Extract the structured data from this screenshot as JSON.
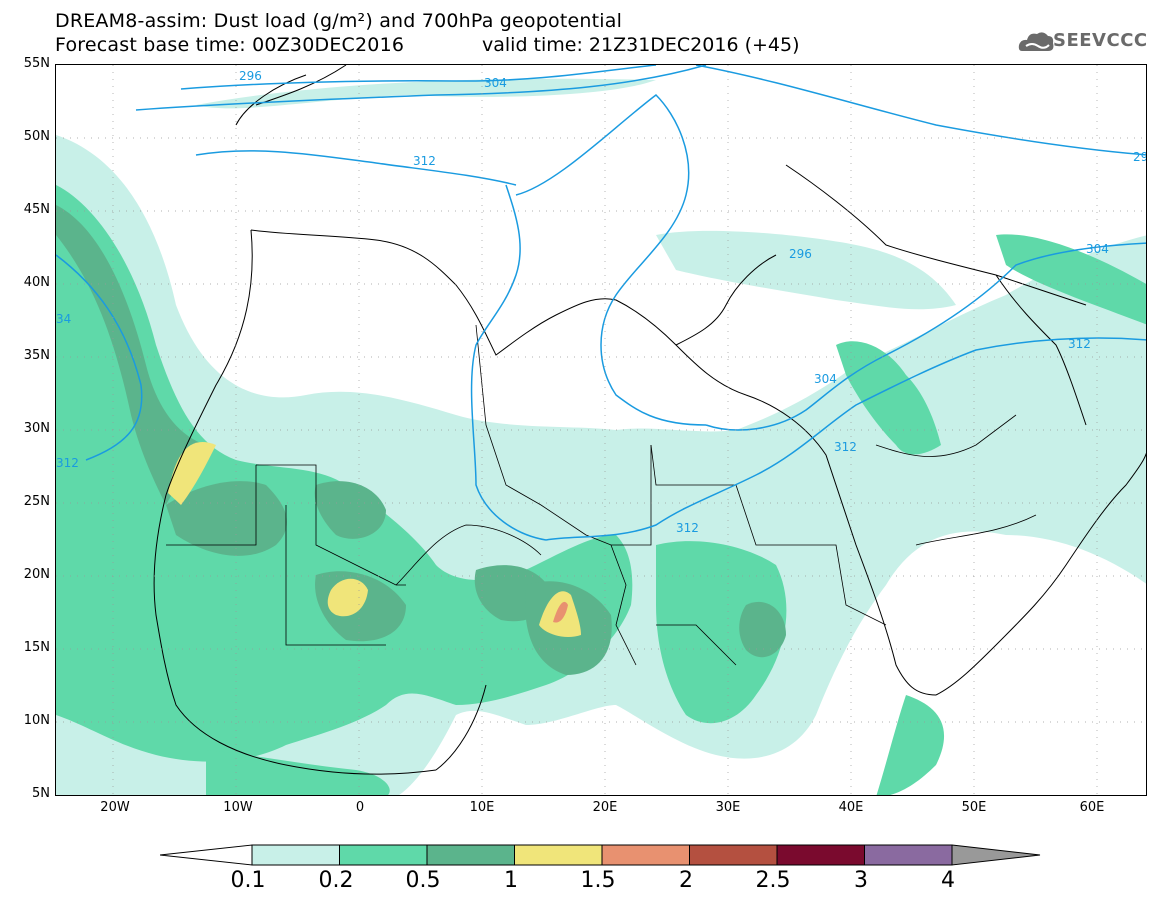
{
  "header": {
    "title_line1": "DREAM8-assim: Dust load (g/m²) and 700hPa geopotential",
    "title_line2": "Forecast base time: 00Z30DEC2016",
    "valid_time": "valid time: 21Z31DEC2016 (+45)",
    "logo_text": "SEEVCCC"
  },
  "map": {
    "lat_labels": [
      "55N",
      "50N",
      "45N",
      "40N",
      "35N",
      "30N",
      "25N",
      "20N",
      "15N",
      "10N",
      "5N"
    ],
    "lon_labels": [
      "20W",
      "10W",
      "0",
      "10E",
      "20E",
      "30E",
      "40E",
      "50E",
      "60E"
    ],
    "contour_labels": [
      "296",
      "304",
      "312",
      "29",
      "304",
      "312",
      "296",
      "304",
      "312",
      "312",
      "312",
      "34"
    ],
    "colors": {
      "level_01": "#c8f0e8",
      "level_02": "#5fd9a9",
      "level_05": "#5bb48c",
      "level_1": "#f0e57a",
      "level_15": "#e89170",
      "level_2": "#b45040",
      "level_25": "#7a0a2e",
      "level_3": "#8a6aa0",
      "level_4": "#999999",
      "contour": "#1a9be0",
      "border": "#000000"
    }
  },
  "colorbar": {
    "labels": [
      "0.1",
      "0.2",
      "0.5",
      "1",
      "1.5",
      "2",
      "2.5",
      "3",
      "4"
    ],
    "colors": [
      "#c8f0e8",
      "#5fd9a9",
      "#5bb48c",
      "#f0e57a",
      "#e89170",
      "#b45040",
      "#7a0a2e",
      "#8a6aa0"
    ]
  }
}
